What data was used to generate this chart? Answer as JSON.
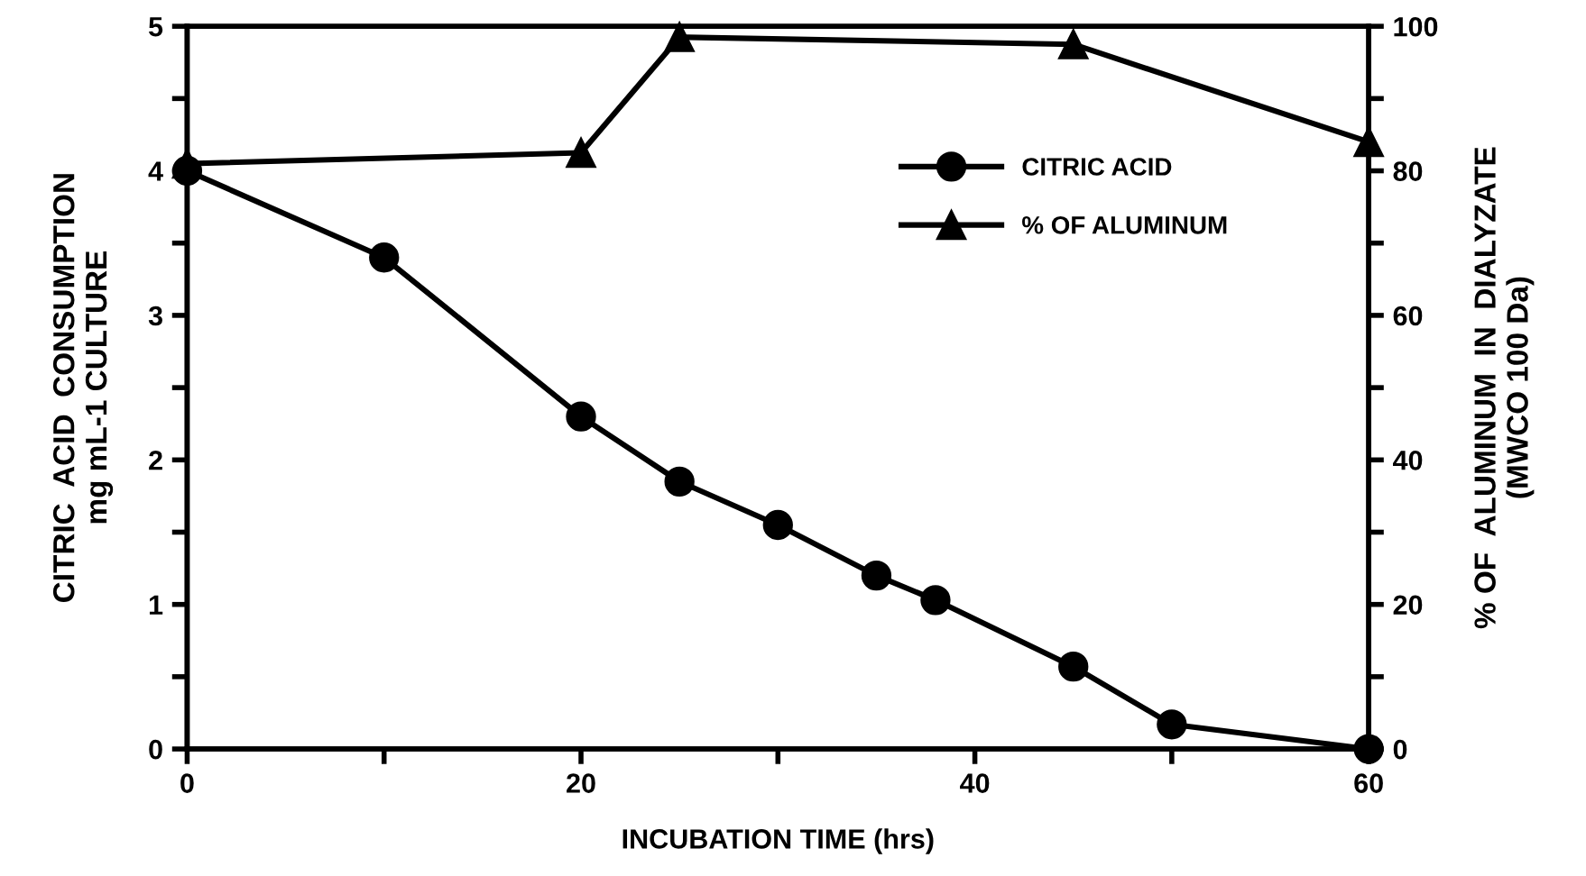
{
  "chart_data": {
    "type": "line",
    "xlabel": "INCUBATION TIME (hrs)",
    "ylabel": "CITRIC  ACID  CONSUMPTION\nmg mL-1 CULTURE",
    "y2label": "% OF  ALUMINUM  IN  DIALYZATE\n(MWCO 100 Da)",
    "xlim": [
      0,
      60
    ],
    "xticks": [
      0,
      {
        "value": 10,
        "label": null
      },
      20,
      {
        "value": 30,
        "label": null
      },
      40,
      {
        "value": 50,
        "label": null
      },
      60
    ],
    "ylim": [
      0,
      5
    ],
    "yticks": [
      0,
      {
        "value": 0.5,
        "label": null
      },
      1,
      {
        "value": 1.5,
        "label": null
      },
      2,
      {
        "value": 2.5,
        "label": null
      },
      3,
      {
        "value": 3.5,
        "label": null
      },
      4,
      {
        "value": 4.5,
        "label": null
      },
      5
    ],
    "y2lim": [
      0,
      100
    ],
    "y2ticks": [
      0,
      {
        "value": 10,
        "label": null
      },
      20,
      {
        "value": 30,
        "label": null
      },
      40,
      {
        "value": 50,
        "label": null
      },
      60,
      {
        "value": 70,
        "label": null
      },
      80,
      {
        "value": 90,
        "label": null
      },
      100
    ],
    "legend": "top right",
    "grid": false,
    "series": [
      {
        "name": "CITRIC ACID",
        "color": "#000000",
        "marker": "circle",
        "x": [
          0,
          10,
          20,
          25,
          30,
          35,
          38,
          45,
          50,
          60
        ],
        "values": [
          4.0,
          3.4,
          2.3,
          1.85,
          1.55,
          1.2,
          1.03,
          0.57,
          0.17,
          0.0
        ]
      },
      {
        "name": "% OF ALUMINUM",
        "color": "#000000",
        "marker": "triangle",
        "axis": "y2",
        "x": [
          0,
          20,
          25,
          45,
          60
        ],
        "values": [
          81,
          82.5,
          98.5,
          97.5,
          84
        ]
      }
    ]
  }
}
